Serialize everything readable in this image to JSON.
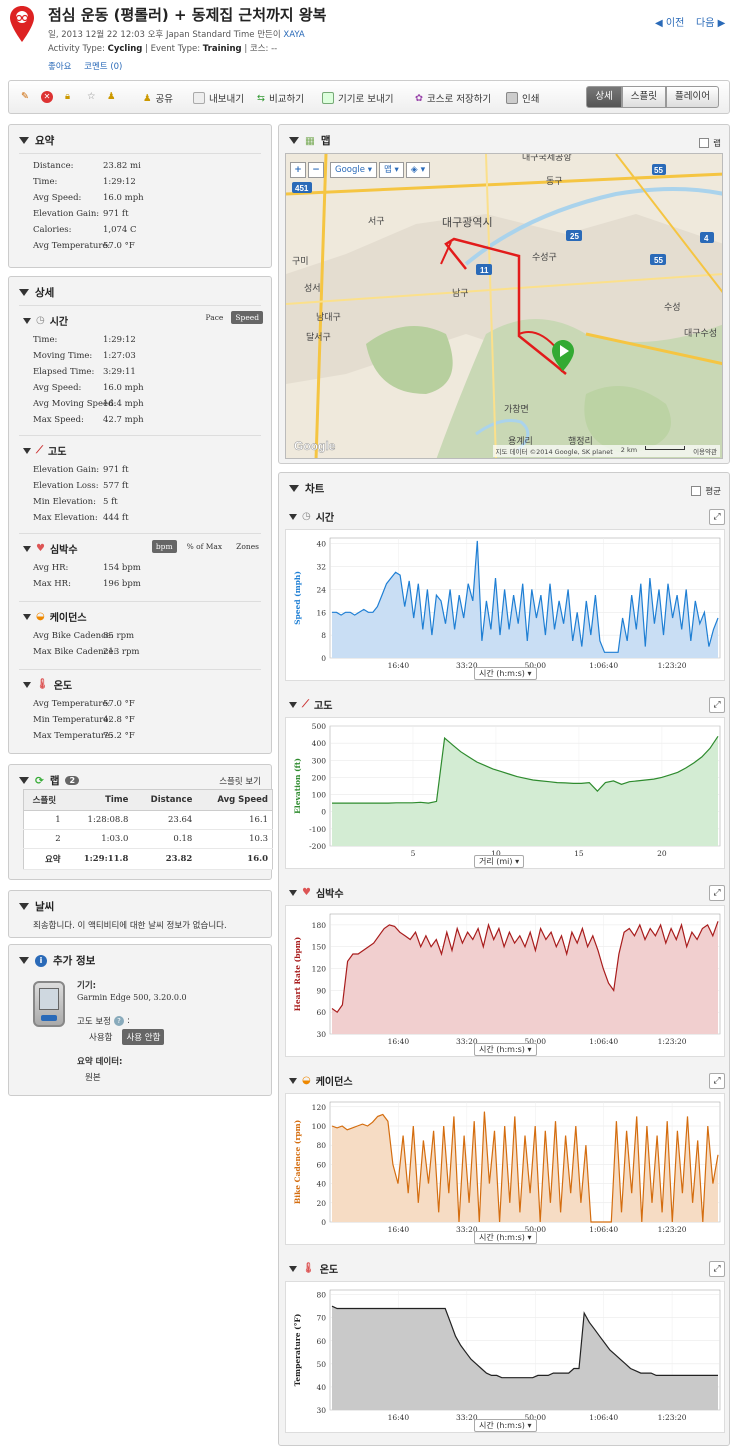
{
  "header": {
    "title": "점심 운동 (평롤러) + 동제집 근처까지 왕복",
    "date_line_prefix": "일, 2013 12월 22 12:03 오후 Japan Standard Time 만든이",
    "author": "XAYA",
    "activity_type_label": "Activity Type:",
    "activity_type": "Cycling",
    "event_type_label": "| Event Type:",
    "event_type": "Training",
    "course_label": "| 코스: --",
    "like": "좋아요",
    "comment": "코멘트 (0)",
    "prev": "이전",
    "next": "다음"
  },
  "toolbar": {
    "share": "공유",
    "export": "내보내기",
    "compare": "비교하기",
    "send_device": "기기로 보내기",
    "save_course": "코스로 저장하기",
    "print": "인쇄",
    "views": [
      "상세",
      "스플릿",
      "플레이어"
    ]
  },
  "summary": {
    "title": "요약",
    "rows": [
      {
        "k": "Distance:",
        "v": "23.82 mi"
      },
      {
        "k": "Time:",
        "v": "1:29:12"
      },
      {
        "k": "Avg Speed:",
        "v": "16.0 mph"
      },
      {
        "k": "Elevation Gain:",
        "v": "971 ft"
      },
      {
        "k": "Calories:",
        "v": "1,074 C"
      },
      {
        "k": "Avg Temperature:",
        "v": "57.0 °F"
      }
    ]
  },
  "details": {
    "title": "상세",
    "time": {
      "title": "시간",
      "toggle": [
        "Pace",
        "Speed"
      ],
      "rows": [
        {
          "k": "Time:",
          "v": "1:29:12"
        },
        {
          "k": "Moving Time:",
          "v": "1:27:03"
        },
        {
          "k": "Elapsed Time:",
          "v": "3:29:11"
        },
        {
          "k": "Avg Speed:",
          "v": "16.0 mph"
        },
        {
          "k": "Avg Moving Speed:",
          "v": "16.4 mph"
        },
        {
          "k": "Max Speed:",
          "v": "42.7 mph"
        }
      ]
    },
    "elevation": {
      "title": "고도",
      "rows": [
        {
          "k": "Elevation Gain:",
          "v": "971 ft"
        },
        {
          "k": "Elevation Loss:",
          "v": "577 ft"
        },
        {
          "k": "Min Elevation:",
          "v": "5 ft"
        },
        {
          "k": "Max Elevation:",
          "v": "444 ft"
        }
      ]
    },
    "hr": {
      "title": "심박수",
      "toggle": [
        "bpm",
        "% of Max",
        "Zones"
      ],
      "rows": [
        {
          "k": "Avg HR:",
          "v": "154 bpm"
        },
        {
          "k": "Max HR:",
          "v": "196 bpm"
        }
      ]
    },
    "cadence": {
      "title": "케이던스",
      "rows": [
        {
          "k": "Avg Bike Cadence:",
          "v": "85 rpm"
        },
        {
          "k": "Max Bike Cadence:",
          "v": "213 rpm"
        }
      ]
    },
    "temp": {
      "title": "온도",
      "rows": [
        {
          "k": "Avg Temperature:",
          "v": "57.0 °F"
        },
        {
          "k": "Min Temperature:",
          "v": "42.8 °F"
        },
        {
          "k": "Max Temperature:",
          "v": "75.2 °F"
        }
      ]
    }
  },
  "laps": {
    "title": "랩",
    "count": "2",
    "view_splits": "스플릿 보기",
    "headers": [
      "스플릿",
      "Time",
      "Distance",
      "Avg Speed"
    ],
    "rows": [
      [
        "1",
        "1:28:08.8",
        "23.64",
        "16.1"
      ],
      [
        "2",
        "1:03.0",
        "0.18",
        "10.3"
      ]
    ],
    "total": [
      "요약",
      "1:29:11.8",
      "23.82",
      "16.0"
    ]
  },
  "weather": {
    "title": "날씨",
    "text": "죄송합니다. 이 액티비티에 대한 날씨 정보가 없습니다."
  },
  "extra": {
    "title": "추가 정보",
    "device_label": "기기:",
    "device": "Garmin Edge 500, 3.20.0.0",
    "elev_corr_label": "고도 보정",
    "use": "사용함",
    "not_use": "사용 안함",
    "summary_data_label": "요약 데이터:",
    "summary_data": "원본"
  },
  "map": {
    "title": "맵",
    "lap_toggle": "랩",
    "provider": "Google",
    "maptype": "맵",
    "labels": [
      "대구국제공항",
      "동구",
      "서구",
      "대구광역시",
      "수성구",
      "남구",
      "성서",
      "남대구",
      "달서구",
      "수성",
      "대구수성",
      "가창면",
      "용계리",
      "행정리",
      "구미"
    ],
    "road_numbers": [
      "451",
      "25",
      "11",
      "55",
      "4",
      "55"
    ],
    "attribution": "지도 데이터 ©2014 Google, SK planet",
    "scale": "2 km",
    "terms": "이용약관"
  },
  "charts_panel": {
    "title": "차트",
    "avg_toggle": "평균",
    "time_axis_select": "시간 (h:m:s)",
    "dist_axis_select": "거리 (mi)"
  },
  "chart_data": [
    {
      "type": "area",
      "title": "시간",
      "ylabel": "Speed (mph)",
      "xticks": [
        "16:40",
        "33:20",
        "50:00",
        "1:06:40",
        "1:23:20"
      ],
      "yticks": [
        0,
        8,
        16,
        24,
        32,
        40
      ],
      "ylim": [
        0,
        42
      ],
      "color": "#1f7fd4",
      "fill": "#c9def4",
      "series": [
        {
          "values": [
            16,
            16,
            15,
            16,
            16,
            15,
            16,
            17,
            16,
            16,
            18,
            22,
            26,
            28,
            30,
            29,
            18,
            27,
            14,
            26,
            10,
            24,
            8,
            22,
            20,
            12,
            24,
            10,
            22,
            14,
            26,
            20,
            41,
            6,
            20,
            10,
            28,
            8,
            24,
            10,
            22,
            12,
            26,
            6,
            24,
            14,
            22,
            8,
            26,
            10,
            20,
            12,
            24,
            6,
            16,
            4,
            20,
            8,
            22,
            6,
            2,
            2,
            2,
            2,
            14,
            6,
            22,
            10,
            26,
            4,
            28,
            12,
            24,
            8,
            26,
            14,
            22,
            10,
            24,
            6,
            20,
            12,
            16,
            4,
            10,
            14
          ]
        }
      ]
    },
    {
      "type": "area",
      "title": "고도",
      "ylabel": "Elevation (ft)",
      "xlabel": "거리 (mi)",
      "xticks": [
        "5",
        "10",
        "15",
        "20"
      ],
      "yticks": [
        500,
        400,
        300,
        200,
        100,
        0,
        -100,
        -200
      ],
      "ylim": [
        -200,
        500
      ],
      "color": "#2e8b2e",
      "fill": "#d3ecd3",
      "series": [
        {
          "values": [
            50,
            50,
            50,
            50,
            50,
            50,
            50,
            50,
            52,
            52,
            52,
            55,
            50,
            60,
            430,
            390,
            350,
            320,
            290,
            270,
            250,
            235,
            220,
            205,
            195,
            185,
            180,
            175,
            170,
            168,
            165,
            165,
            170,
            120,
            170,
            180,
            160,
            175,
            180,
            185,
            190,
            200,
            215,
            230,
            255,
            285,
            320,
            370,
            440
          ]
        }
      ]
    },
    {
      "type": "area",
      "title": "심박수",
      "ylabel": "Heart Rate (bpm)",
      "xticks": [
        "16:40",
        "33:20",
        "50:00",
        "1:06:40",
        "1:23:20"
      ],
      "yticks": [
        180,
        150,
        120,
        90,
        60,
        30
      ],
      "ylim": [
        30,
        195
      ],
      "color": "#a81c1c",
      "fill": "#f1cfcf",
      "series": [
        {
          "values": [
            65,
            60,
            70,
            130,
            140,
            140,
            145,
            150,
            155,
            165,
            175,
            180,
            178,
            170,
            165,
            160,
            170,
            150,
            165,
            150,
            160,
            140,
            170,
            145,
            175,
            155,
            170,
            160,
            175,
            150,
            180,
            160,
            175,
            150,
            170,
            155,
            165,
            150,
            170,
            145,
            175,
            160,
            170,
            150,
            165,
            140,
            170,
            155,
            175,
            150,
            165,
            145,
            120,
            100,
            90,
            140,
            170,
            175,
            165,
            180,
            160,
            175,
            165,
            180,
            155,
            175,
            160,
            180,
            150,
            170,
            160,
            175,
            180,
            165,
            185
          ]
        }
      ]
    },
    {
      "type": "area",
      "title": "케이던스",
      "ylabel": "Bike Cadence (rpm)",
      "xticks": [
        "16:40",
        "33:20",
        "50:00",
        "1:06:40",
        "1:23:20"
      ],
      "yticks": [
        0,
        20,
        40,
        60,
        80,
        100,
        120
      ],
      "ylim": [
        0,
        125
      ],
      "color": "#d46d0f",
      "fill": "#f6dcc4",
      "series": [
        {
          "values": [
            100,
            98,
            100,
            96,
            98,
            100,
            102,
            100,
            104,
            110,
            112,
            105,
            60,
            40,
            90,
            30,
            100,
            20,
            85,
            40,
            95,
            10,
            100,
            30,
            110,
            0,
            90,
            20,
            105,
            0,
            115,
            40,
            95,
            0,
            100,
            20,
            110,
            10,
            90,
            30,
            100,
            0,
            95,
            20,
            105,
            10,
            90,
            30,
            100,
            20,
            80,
            0,
            0,
            0,
            0,
            0,
            105,
            10,
            95,
            30,
            110,
            0,
            100,
            20,
            90,
            10,
            105,
            0,
            95,
            30,
            110,
            20,
            85,
            0,
            100,
            40,
            70
          ]
        }
      ]
    },
    {
      "type": "area",
      "title": "온도",
      "ylabel": "Temperature (°F)",
      "xticks": [
        "16:40",
        "33:20",
        "50:00",
        "1:06:40",
        "1:23:20"
      ],
      "yticks": [
        30,
        40,
        50,
        60,
        70,
        80
      ],
      "ylim": [
        30,
        82
      ],
      "color": "#222222",
      "fill": "#c9c9c9",
      "series": [
        {
          "values": [
            75,
            74,
            74,
            74,
            74,
            74,
            74,
            74,
            74,
            74,
            74,
            74,
            74,
            74,
            74,
            74,
            74,
            74,
            74,
            74,
            74,
            74,
            74,
            68,
            62,
            58,
            55,
            52,
            50,
            48,
            46,
            45,
            45,
            44,
            44,
            44,
            44,
            44,
            44,
            44,
            45,
            45,
            45,
            46,
            46,
            46,
            46,
            48,
            48,
            72,
            68,
            65,
            62,
            59,
            56,
            54,
            52,
            50,
            48,
            47,
            46,
            46,
            46,
            45,
            45,
            45,
            45,
            45,
            45,
            45,
            45,
            45,
            45,
            45,
            45,
            45
          ]
        }
      ]
    }
  ]
}
